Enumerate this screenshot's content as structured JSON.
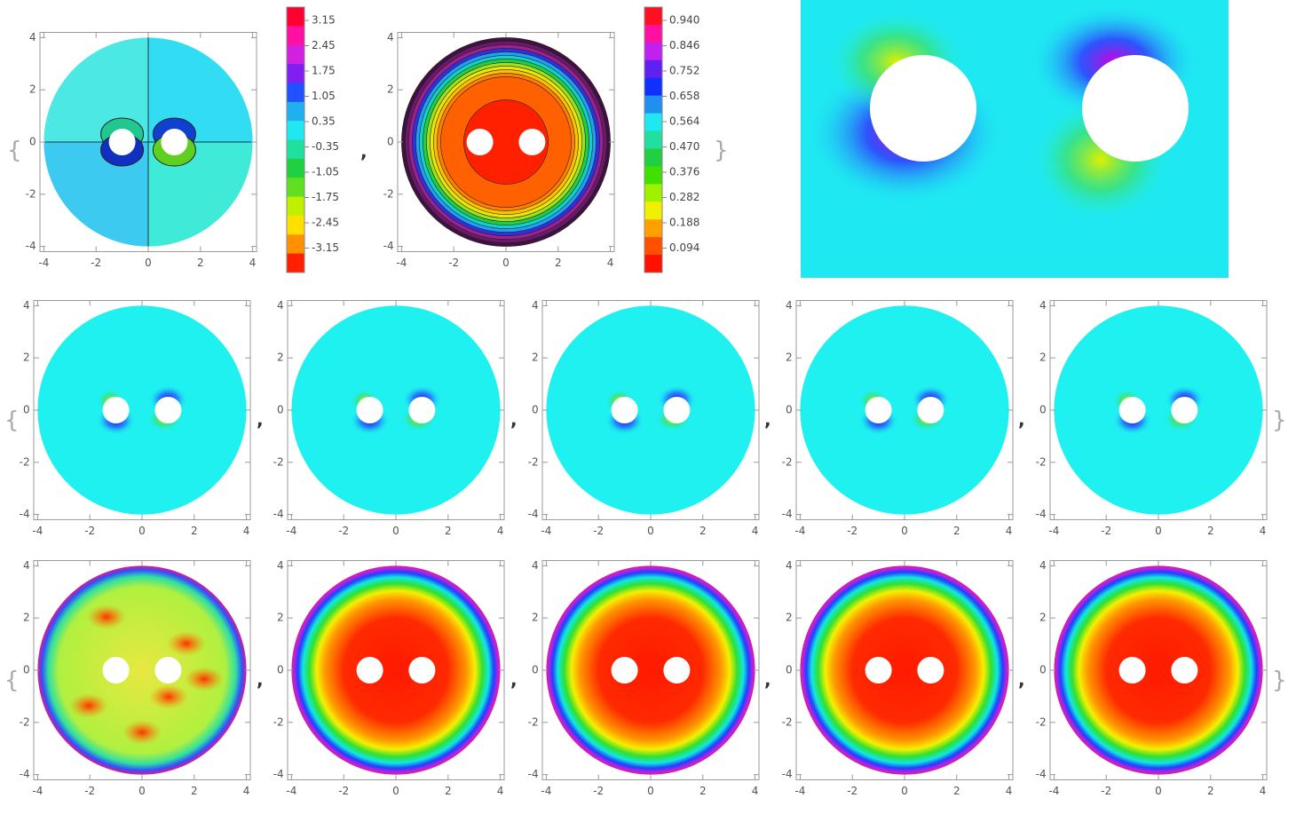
{
  "axis_ticks": [
    -4,
    -2,
    0,
    2,
    4
  ],
  "legend_1": [
    "3.15",
    "2.45",
    "1.75",
    "1.05",
    "0.35",
    "-0.35",
    "-1.05",
    "-1.75",
    "-2.45",
    "-3.15"
  ],
  "legend_2": [
    "0.940",
    "0.846",
    "0.752",
    "0.658",
    "0.564",
    "0.470",
    "0.376",
    "0.282",
    "0.188",
    "0.094"
  ],
  "punctuation": {
    "open": "{",
    "close": "}",
    "separator": ","
  }
}
